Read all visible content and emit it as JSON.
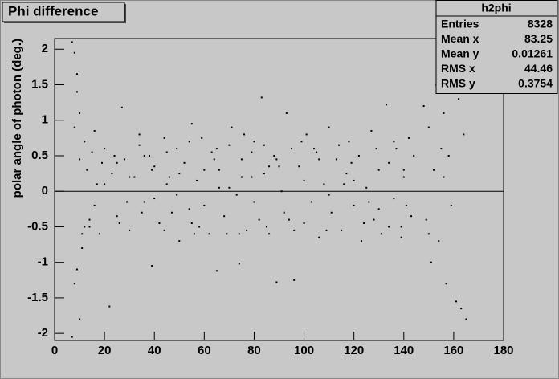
{
  "chart_data": {
    "type": "scatter",
    "title": "Phi difference",
    "ylabel": "polar angle of photon (deg.)",
    "color": "#000000",
    "x": [
      7,
      7,
      8,
      8,
      8,
      9,
      9,
      10,
      10,
      11,
      9,
      10,
      11,
      12,
      12,
      13,
      14,
      15,
      16,
      17,
      18,
      20,
      22,
      23,
      25,
      27,
      28,
      30,
      32,
      34,
      36,
      38,
      39,
      40,
      42,
      44,
      45,
      47,
      49,
      50,
      52,
      54,
      55,
      57,
      58,
      60,
      62,
      63,
      65,
      66,
      68,
      70,
      71,
      73,
      74,
      75,
      77,
      79,
      80,
      82,
      83,
      84,
      86,
      88,
      89,
      91,
      92,
      93,
      95,
      96,
      98,
      100,
      101,
      103,
      105,
      106,
      108,
      110,
      111,
      113,
      115,
      117,
      118,
      120,
      122,
      123,
      125,
      127,
      128,
      130,
      131,
      133,
      134,
      136,
      137,
      139,
      140,
      142,
      143,
      141,
      148,
      149,
      150,
      151,
      152,
      153,
      154,
      155,
      156,
      157,
      158,
      159,
      160,
      161,
      162,
      163,
      164,
      165,
      150,
      156,
      20,
      30,
      40,
      50,
      60,
      70,
      80,
      90,
      100,
      110,
      120,
      130,
      140,
      25,
      35,
      45,
      55,
      65,
      75,
      85,
      14,
      24,
      34,
      44,
      54,
      64,
      74,
      84,
      94,
      104,
      114,
      124,
      134,
      144,
      19,
      29,
      39,
      49,
      59,
      69,
      79,
      89,
      99,
      109,
      119,
      129,
      139,
      16,
      26,
      36,
      46,
      56,
      66,
      76,
      86,
      96,
      106,
      116,
      126,
      136
    ],
    "y": [
      2.1,
      -2.05,
      1.95,
      -1.3,
      0.9,
      1.65,
      -1.1,
      -1.8,
      0.45,
      -0.8,
      1.4,
      1.1,
      -0.6,
      0.7,
      -0.5,
      0.3,
      -0.4,
      0.55,
      -0.2,
      0.1,
      -0.6,
      0.6,
      -1.62,
      0.25,
      -0.35,
      1.18,
      0.45,
      -0.55,
      0.2,
      0.8,
      -0.15,
      0.5,
      -1.05,
      0.35,
      -0.45,
      0.75,
      0.1,
      -0.3,
      0.6,
      -0.7,
      0.4,
      -0.25,
      0.95,
      0.15,
      -0.5,
      0.3,
      -0.6,
      0.55,
      -1.12,
      0.05,
      -0.35,
      0.65,
      0.9,
      -0.05,
      -1.02,
      0.45,
      -0.55,
      0.2,
      0.7,
      -0.4,
      1.32,
      0.25,
      -0.6,
      0.5,
      -1.28,
      0.0,
      -0.3,
      1.1,
      0.6,
      -1.25,
      0.35,
      -0.45,
      0.8,
      -0.15,
      0.55,
      -0.65,
      0.1,
      0.9,
      -0.3,
      0.45,
      -0.55,
      0.25,
      0.7,
      -0.2,
      0.5,
      -0.7,
      0.05,
      0.85,
      -0.4,
      0.3,
      -0.6,
      1.22,
      0.4,
      -0.1,
      0.6,
      -0.5,
      0.2,
      0.75,
      -0.35,
      -0.2,
      1.2,
      -0.4,
      0.9,
      -1.0,
      0.3,
      1.5,
      -0.7,
      0.6,
      1.1,
      -1.3,
      0.5,
      -0.2,
      1.4,
      -1.55,
      1.3,
      -1.65,
      0.8,
      -1.8,
      -0.6,
      0.2,
      0.1,
      0.2,
      -0.1,
      0.25,
      -0.2,
      0.05,
      -0.15,
      0.35,
      0.15,
      -0.05,
      0.15,
      -0.25,
      0.3,
      0.4,
      -0.3,
      0.55,
      -0.45,
      0.6,
      0.2,
      -0.5,
      -0.5,
      0.5,
      0.65,
      -0.55,
      0.7,
      0.45,
      -0.6,
      0.65,
      -0.4,
      0.6,
      0.65,
      -0.45,
      -0.5,
      0.5,
      0.4,
      -0.15,
      0.3,
      -0.05,
      0.75,
      -0.6,
      0.55,
      0.45,
      0.7,
      -0.55,
      0.4,
      0.6,
      -0.65,
      0.85,
      -0.45,
      0.5,
      0.2,
      -0.6,
      0.3,
      0.8,
      0.35,
      -0.55,
      0.45,
      0.1,
      -0.15,
      0.7
    ],
    "xlim": [
      0,
      180
    ],
    "ylim": [
      -2.1,
      2.15
    ],
    "xticks": [
      0,
      20,
      40,
      60,
      80,
      100,
      120,
      140,
      160,
      180
    ],
    "yticks": [
      -2,
      -1.5,
      -1,
      -0.5,
      0,
      0.5,
      1,
      1.5,
      2
    ],
    "stats": {
      "name": "h2phi",
      "rows": [
        {
          "label": "Entries",
          "value": 8328
        },
        {
          "label": "Mean x",
          "value": 83.25
        },
        {
          "label": "Mean y",
          "value": 0.01261
        },
        {
          "label": "RMS x",
          "value": 44.46
        },
        {
          "label": "RMS y",
          "value": 0.3754
        }
      ]
    }
  }
}
